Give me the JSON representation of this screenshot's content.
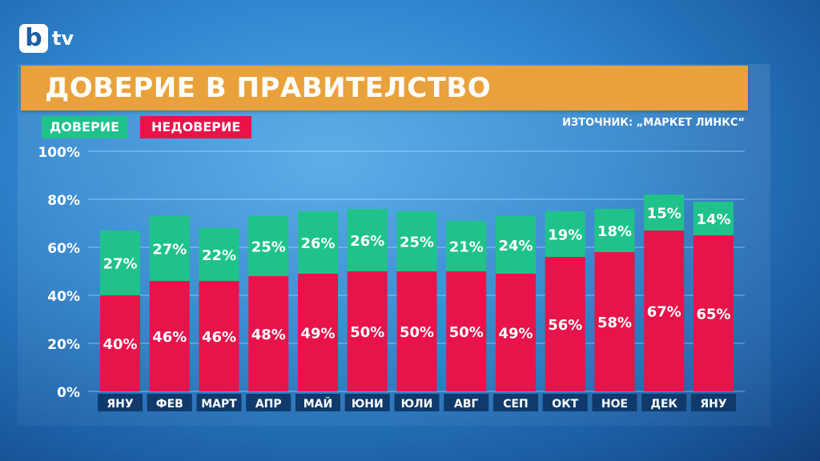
{
  "branding": {
    "logo_letter": "b",
    "logo_text": "tv"
  },
  "title": "ДОВЕРИЕ В ПРАВИТЕЛСТВО",
  "source": "ИЗТОЧНИК: „МАРКЕТ ЛИНКС“",
  "colors": {
    "trust": "#1fc38a",
    "distrust": "#e8134a",
    "title_bar": "#e9a23b",
    "label_box": "#0f3a6b"
  },
  "chart_data": {
    "type": "bar",
    "stacked": true,
    "categories": [
      "ЯНУ",
      "ФЕВ",
      "МАРТ",
      "АПР",
      "МАЙ",
      "ЮНИ",
      "ЮЛИ",
      "АВГ",
      "СЕП",
      "ОКТ",
      "НОЕ",
      "ДЕК",
      "ЯНУ"
    ],
    "series": [
      {
        "name": "НЕДОВЕРИЕ",
        "values": [
          40,
          46,
          46,
          48,
          49,
          50,
          50,
          50,
          49,
          56,
          58,
          67,
          65
        ],
        "labels": [
          "40%",
          "46%",
          "46%",
          "48%",
          "49%",
          "50%",
          "50%",
          "50%",
          "49%",
          "56%",
          "58%",
          "67%",
          "65%"
        ]
      },
      {
        "name": "ДОВЕРИЕ",
        "values": [
          27,
          27,
          22,
          25,
          26,
          26,
          25,
          21,
          24,
          19,
          18,
          15,
          14
        ],
        "labels": [
          "27%",
          "27%",
          "22%",
          "25%",
          "26%",
          "26%",
          "25%",
          "21%",
          "24%",
          "19%",
          "18%",
          "15%",
          "14%"
        ]
      }
    ],
    "ylim": [
      0,
      100
    ],
    "yticks": [
      "0%",
      "20%",
      "40%",
      "60%",
      "80%",
      "100%"
    ],
    "grid": true,
    "legend_position": "top-left"
  }
}
